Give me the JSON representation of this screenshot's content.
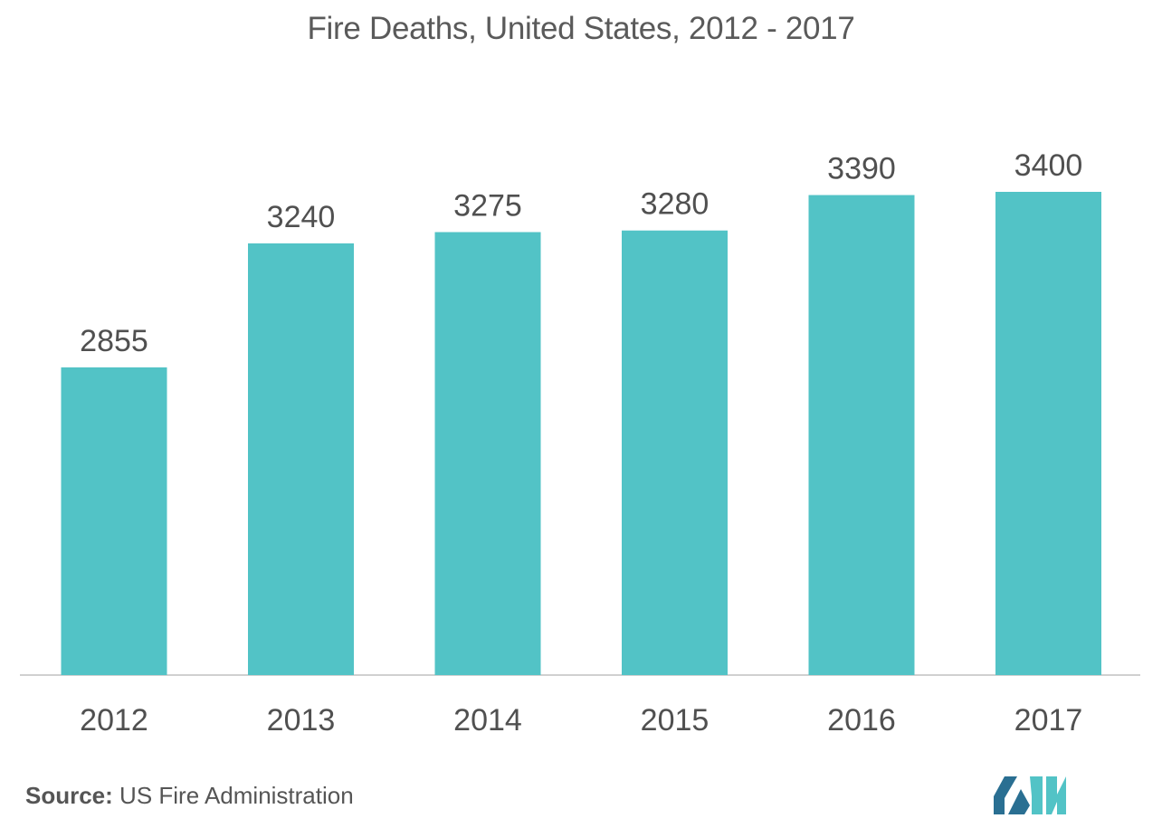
{
  "title": "Fire Deaths, United States, 2012 - 2017",
  "source": {
    "label": "Source:",
    "text": "US Fire Administration"
  },
  "colors": {
    "bar": "#52c3c6",
    "axis": "#d0d0d0",
    "label_text": "#505050",
    "logo_dark": "#2a6f92",
    "logo_light": "#52c3c6"
  },
  "logo": {
    "icon": "mordor-intelligence-logo-icon"
  },
  "chart_data": {
    "type": "bar",
    "categories": [
      "2012",
      "2013",
      "2014",
      "2015",
      "2016",
      "2017"
    ],
    "values": [
      2855,
      3240,
      3275,
      3280,
      3390,
      3400
    ],
    "title": "Fire Deaths, United States, 2012 - 2017",
    "xlabel": "",
    "ylabel": "",
    "ylim": [
      1900,
      3400
    ],
    "data_labels": true,
    "grid": false,
    "legend": "none"
  }
}
